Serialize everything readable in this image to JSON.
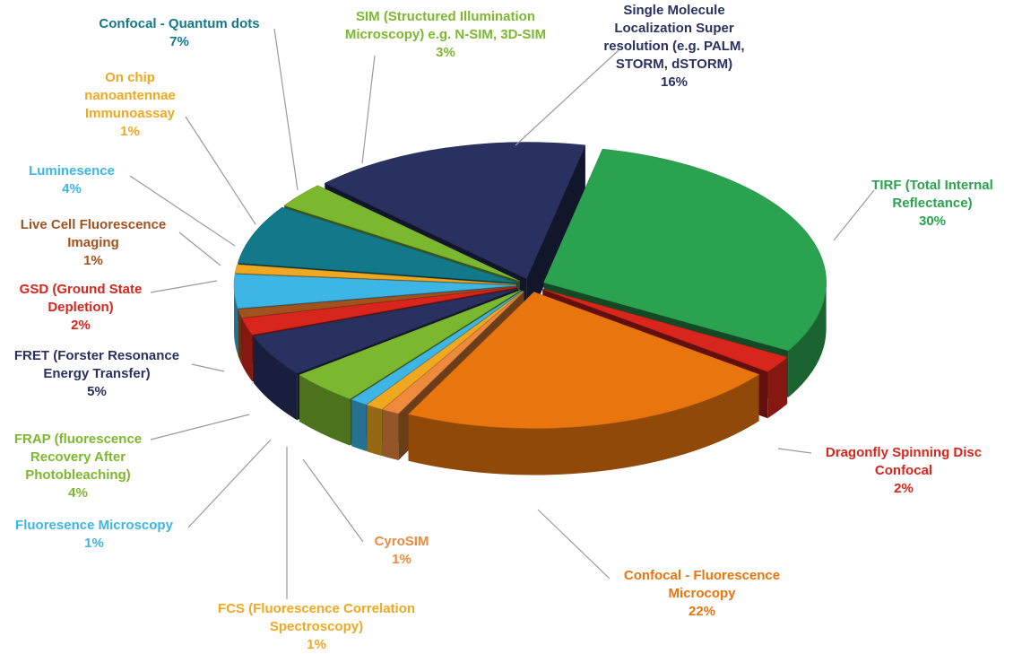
{
  "chart_data": {
    "type": "pie",
    "categories": [
      "TIRF (Total Internal Reflectance)",
      "Dragonfly Spinning Disc Confocal",
      "Confocal - Fluorescence Microcopy",
      "CyroSIM",
      "FCS (Fluorescence Correlation Spectroscopy)",
      "Fluoresence Microscopy",
      "FRAP (fluorescence Recovery After Photobleaching)",
      "FRET (Forster Resonance Energy Transfer)",
      "GSD (Ground State Depletion)",
      "Live Cell Fluorescence Imaging",
      "Luminesence",
      "On chip nanoantennae Immunoassay",
      "Confocal - Quantum dots",
      "SIM (Structured Illumination Microscopy) e.g. N-SIM, 3D-SIM",
      "Single Molecule Localization Super resolution (e.g. PALM, STORM, dSTORM)"
    ],
    "values": [
      30,
      2,
      22,
      1,
      1,
      1,
      4,
      5,
      2,
      1,
      4,
      1,
      7,
      3,
      16
    ],
    "value_labels": [
      "30%",
      "2%",
      "22%",
      "1%",
      "1%",
      "1%",
      "4%",
      "5%",
      "2%",
      "1%",
      "4%",
      "1%",
      "7%",
      "3%",
      "16%"
    ],
    "colors": [
      "#2ba24f",
      "#d8261d",
      "#e8750e",
      "#ee8a3d",
      "#f0a821",
      "#3db6e6",
      "#7cb82f",
      "#283160",
      "#d8261d",
      "#a2521d",
      "#3db6e6",
      "#f0a821",
      "#13798a",
      "#7cb82f",
      "#283160"
    ]
  }
}
